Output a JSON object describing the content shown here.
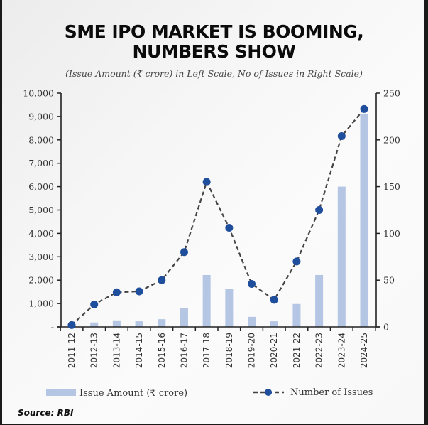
{
  "chart_data": {
    "type": "bar+line",
    "title": "SME IPO MARKET IS BOOMING, NUMBERS SHOW",
    "title_lines": [
      "SME IPO MARKET IS BOOMING,",
      "NUMBERS SHOW"
    ],
    "subtitle": "(Issue Amount (₹ crore) in Left Scale, No of Issues in Right Scale)",
    "categories": [
      "2011-12",
      "2012-13",
      "2013-14",
      "2014-15",
      "2015-16",
      "2016-17",
      "2017-18",
      "2018-19",
      "2019-20",
      "2020-21",
      "2021-22",
      "2022-23",
      "2023-24",
      "2024-25"
    ],
    "series": [
      {
        "name": "Issue Amount (₹ crore)",
        "type": "bar",
        "axis": "left",
        "color": "#b4c6e4",
        "values": [
          0,
          190,
          280,
          240,
          330,
          820,
          2220,
          1640,
          430,
          240,
          980,
          2220,
          6000,
          9100
        ]
      },
      {
        "name": "Number of Issues",
        "type": "line",
        "axis": "right",
        "color": "#1f4e9c",
        "line_color": "#444444",
        "line_style": "dashed",
        "values": [
          2,
          24,
          37,
          38,
          50,
          80,
          155,
          106,
          46,
          29,
          70,
          125,
          204,
          233
        ]
      }
    ],
    "left_axis": {
      "ylim": [
        0,
        10000
      ],
      "ticks": [
        0,
        1000,
        2000,
        3000,
        4000,
        5000,
        6000,
        7000,
        8000,
        9000,
        10000
      ],
      "tick_labels": [
        "-",
        "1,000",
        "2,000",
        "3,000",
        "4,000",
        "5,000",
        "6,000",
        "7,000",
        "8,000",
        "9,000",
        "10,000"
      ]
    },
    "right_axis": {
      "ylim": [
        0,
        250
      ],
      "ticks": [
        0,
        50,
        100,
        150,
        200,
        250
      ],
      "tick_labels": [
        "0",
        "50",
        "100",
        "150",
        "200",
        "250"
      ]
    },
    "grid": false,
    "legend": {
      "placement": "bottom",
      "entries": [
        "Issue Amount (₹ crore)",
        "Number of Issues"
      ]
    },
    "source": "Source: RBI"
  }
}
